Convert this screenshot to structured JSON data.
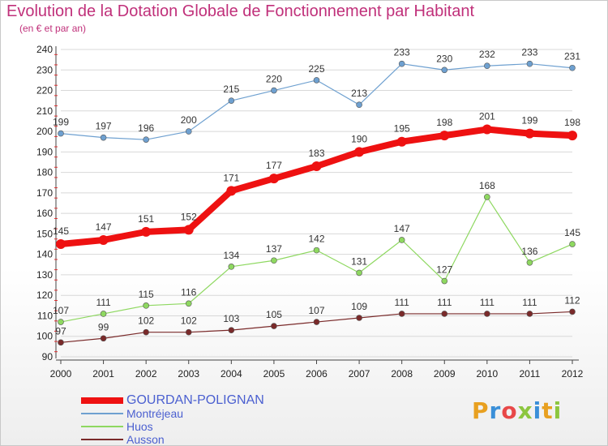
{
  "header": {
    "title": "Evolution de la Dotation Globale de Fonctionnement par Habitant",
    "subtitle": "(en € et par an)"
  },
  "logo": {
    "text": "Proxiti",
    "colors": [
      "#e8a020",
      "#3a8fd8",
      "#e84848",
      "#8cc63f",
      "#3a8fd8",
      "#e8a020",
      "#8cc63f"
    ]
  },
  "colors": {
    "grid": "#d8d8d8",
    "axis": "#444444",
    "tick_marker": "#e03030"
  },
  "chart_data": {
    "type": "line",
    "x": [
      "2000",
      "2001",
      "2002",
      "2003",
      "2004",
      "2005",
      "2006",
      "2007",
      "2008",
      "2009",
      "2010",
      "2011",
      "2012"
    ],
    "ylim": [
      90,
      240
    ],
    "yticks": [
      90,
      100,
      110,
      120,
      130,
      140,
      150,
      160,
      170,
      180,
      190,
      200,
      210,
      220,
      230,
      240
    ],
    "grid": true,
    "legend_position": "bottom-left",
    "series": [
      {
        "name": "Ausson",
        "color": "#7a2a2a",
        "width": 1.2,
        "marker": 3.5,
        "values": [
          97,
          99,
          102,
          102,
          103,
          105,
          107,
          109,
          111,
          111,
          111,
          111,
          112
        ]
      },
      {
        "name": "Huos",
        "color": "#8ed860",
        "width": 1.2,
        "marker": 3.5,
        "values": [
          107,
          111,
          115,
          116,
          134,
          137,
          142,
          131,
          147,
          127,
          168,
          136,
          145
        ]
      },
      {
        "name": "Montréjeau",
        "color": "#6ea0d0",
        "width": 1.2,
        "marker": 3.5,
        "values": [
          199,
          197,
          196,
          200,
          215,
          220,
          225,
          213,
          233,
          230,
          232,
          233,
          231
        ]
      },
      {
        "name": "GOURDAN-POLIGNAN",
        "color": "#ee1111",
        "width": 8,
        "marker": 6,
        "values": [
          145,
          147,
          151,
          152,
          171,
          177,
          183,
          190,
          195,
          198,
          201,
          199,
          198
        ]
      }
    ],
    "legend": [
      "GOURDAN-POLIGNAN",
      "Montréjeau",
      "Huos",
      "Ausson"
    ]
  }
}
